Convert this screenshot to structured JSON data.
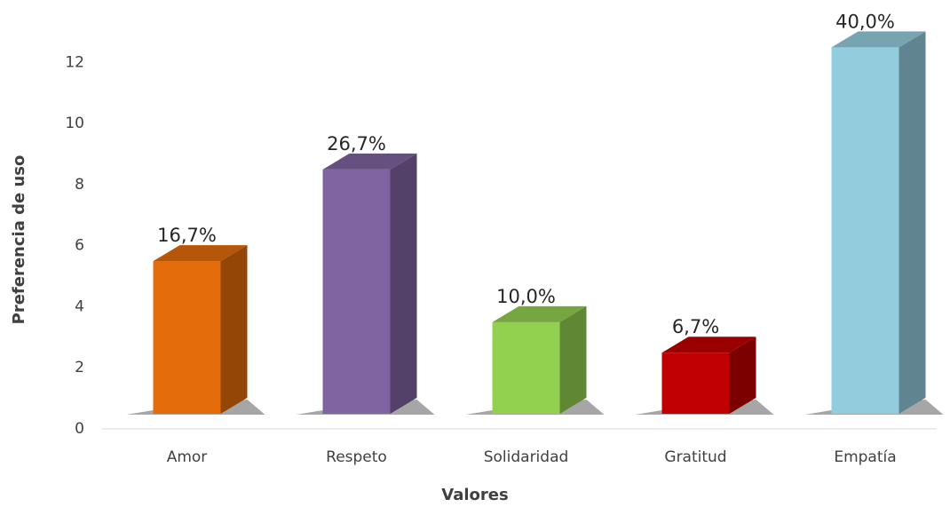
{
  "chart_data": {
    "type": "bar3d",
    "x_label": "Valores",
    "y_label": "Preferencia de uso",
    "categories": [
      "Amor",
      "Respeto",
      "Solidaridad",
      "Gratitud",
      "Empatía"
    ],
    "values": [
      5,
      8,
      3,
      2,
      12
    ],
    "value_labels": [
      "16,7%",
      "26,7%",
      "10,0%",
      "6,7%",
      "40,0%"
    ],
    "colors": [
      "#e46c0a",
      "#8064a2",
      "#92d050",
      "#c00000",
      "#93cddd"
    ],
    "ylim": [
      0,
      13
    ],
    "yticks": [
      0,
      2,
      4,
      6,
      8,
      10,
      12
    ],
    "grid": false
  }
}
